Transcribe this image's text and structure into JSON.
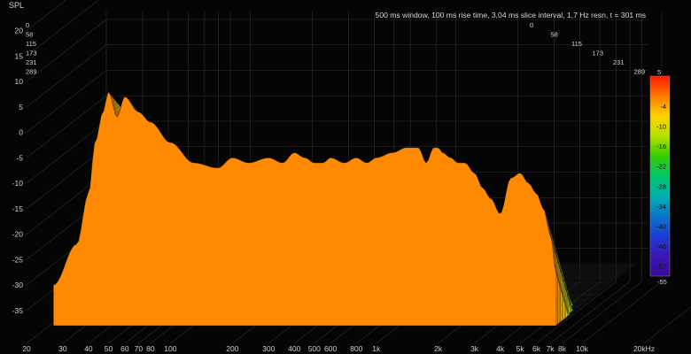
{
  "window_caption": "500 ms window, 100 ms rise time, 3,04 ms slice interval, 1,7 Hz resn, t = 301 ms",
  "colors": {
    "background": "#050505",
    "grid": "#2e2e2e",
    "text": "#cfcfcf"
  },
  "chart_data": {
    "type": "waterfall",
    "ylabel": "SPL",
    "y_ticks": [
      "20",
      "15",
      "10",
      "5",
      "0",
      "-5",
      "-10",
      "-15",
      "-20",
      "-25",
      "-30",
      "-35"
    ],
    "ylim": [
      -38,
      22
    ],
    "x_ticks": [
      "20",
      "30",
      "40",
      "50",
      "60",
      "70",
      "80",
      "100",
      "200",
      "300",
      "400",
      "500",
      "600",
      "800",
      "1k",
      "2k",
      "3k",
      "4k",
      "5k",
      "6k",
      "7k",
      "8k",
      "10k",
      "20kHz"
    ],
    "x_tick_freqs": [
      20,
      30,
      40,
      50,
      60,
      70,
      80,
      100,
      200,
      300,
      400,
      500,
      600,
      800,
      1000,
      2000,
      3000,
      4000,
      5000,
      6000,
      7000,
      8000,
      10000,
      20000
    ],
    "xlim": [
      20,
      20000
    ],
    "time_ticks_left": [
      "0",
      "58",
      "115",
      "173",
      "231",
      "289"
    ],
    "time_ticks_right": [
      "0",
      "58",
      "115",
      "173",
      "231",
      "289"
    ],
    "time_unit": "ms",
    "colorbar_ticks": [
      "5",
      "-4",
      "-10",
      "-16",
      "-22",
      "-28",
      "-34",
      "-40",
      "-46",
      "-52",
      "-55"
    ],
    "colorbar_range": [
      -55,
      5
    ],
    "colorbar_stops": [
      "#ff1a00",
      "#ff7a00",
      "#ffd200",
      "#b5e000",
      "#35cc00",
      "#00c66a",
      "#00b0b0",
      "#0a76c8",
      "#1d3cd8",
      "#3a16b8",
      "#3a0a9a"
    ],
    "front_slice": {
      "freq": [
        27,
        35,
        40,
        43,
        47,
        50,
        55,
        60,
        70,
        80,
        100,
        130,
        170,
        200,
        240,
        300,
        350,
        400,
        450,
        500,
        550,
        600,
        700,
        800,
        900,
        1000,
        1200,
        1400,
        1600,
        1750,
        1900,
        2000,
        2100,
        2300,
        2500,
        2700,
        3000,
        3300,
        3600,
        4000,
        4500,
        5000,
        5500,
        6000,
        6500,
        7000,
        7500
      ],
      "spl": [
        -30,
        -22,
        -12,
        -2,
        4,
        8,
        3,
        7,
        4,
        2,
        -2,
        -6,
        -7,
        -5,
        -6,
        -5,
        -6,
        -4,
        -5,
        -6,
        -6,
        -5,
        -6,
        -5,
        -6,
        -5,
        -4,
        -3,
        -3,
        -6,
        -3,
        -3,
        -4,
        -5,
        -6,
        -6,
        -8,
        -11,
        -13,
        -16,
        -9,
        -8,
        -10,
        -12,
        -15,
        -20,
        -28
      ]
    }
  }
}
